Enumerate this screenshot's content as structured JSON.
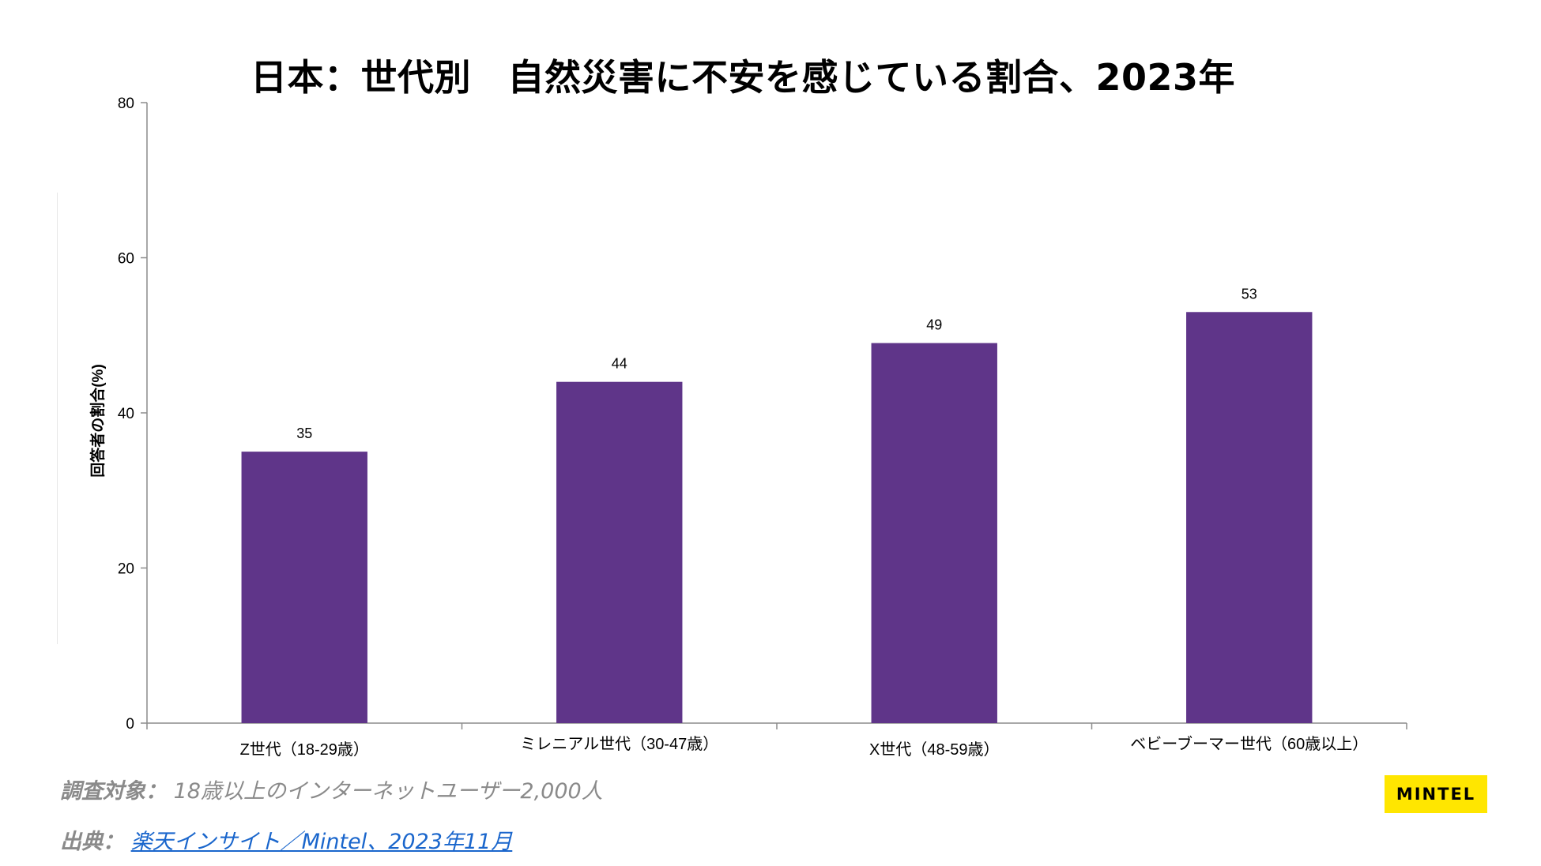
{
  "chart_data": {
    "type": "bar",
    "title": "日本：世代別　自然災害に不安を感じている割合、2023年",
    "xlabel": "",
    "ylabel": "回答者の割合(%)",
    "categories": [
      "Z世代（18-29歳）",
      "ミレニアル世代（30-47歳）",
      "X世代（48-59歳）",
      "ベビーブーマー世代（60歳以上）"
    ],
    "values": [
      35,
      44,
      49,
      53
    ],
    "data_labels": [
      "35",
      "44",
      "49",
      "53"
    ],
    "ylim": [
      0,
      80
    ],
    "yticks": [
      0,
      20,
      40,
      60,
      80
    ],
    "ytick_labels": [
      "0",
      "20",
      "40",
      "60",
      "80"
    ],
    "bar_color": "#5f3589",
    "grid": false,
    "legend": "none"
  },
  "footer": {
    "survey_label": "調査対象：",
    "survey_text": "18歳以上のインターネットユーザー2,000人",
    "source_label": "出典：",
    "source_link": "楽天インサイト／Mintel、2023年11月"
  },
  "logo": {
    "text": "MINTEL",
    "color": "#ffe600"
  }
}
